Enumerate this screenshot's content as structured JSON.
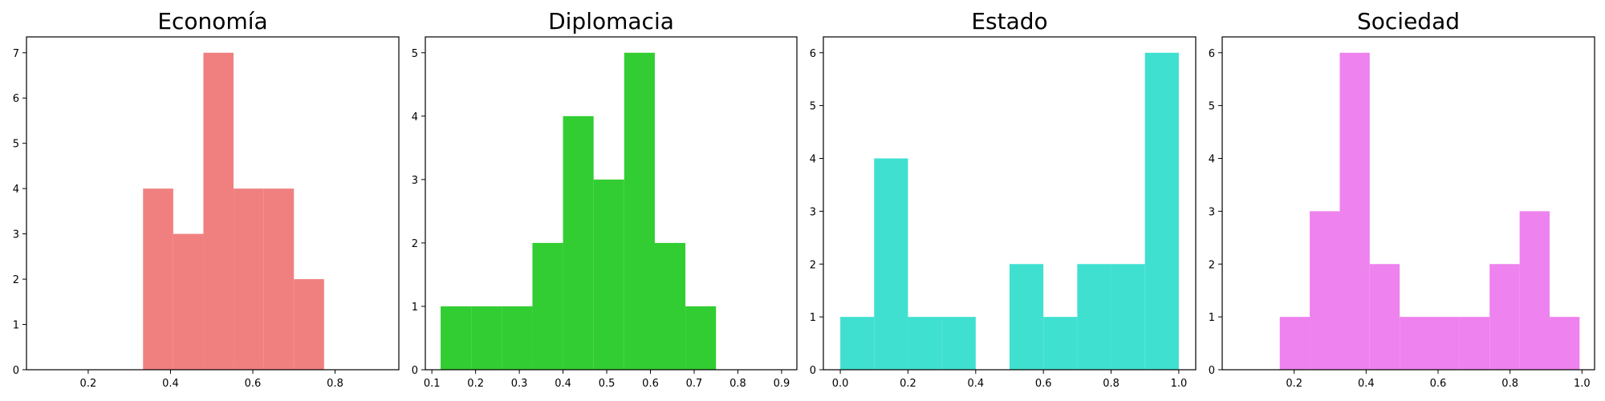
{
  "chart_data": [
    {
      "type": "histogram",
      "title": "Economía",
      "color": "#f08080",
      "xlim": [
        0.05,
        0.955
      ],
      "ylim": [
        0,
        7.35
      ],
      "xticks": [
        0.2,
        0.4,
        0.6,
        0.8
      ],
      "xtick_labels": [
        "0.2",
        "0.4",
        "0.6",
        "0.8"
      ],
      "yticks": [
        0,
        1,
        2,
        3,
        4,
        5,
        6,
        7
      ],
      "ytick_labels": [
        "0",
        "1",
        "2",
        "3",
        "4",
        "5",
        "6",
        "7"
      ],
      "bins": [
        {
          "x0": 0.3333,
          "x1": 0.4067,
          "count": 4
        },
        {
          "x0": 0.4067,
          "x1": 0.48,
          "count": 3
        },
        {
          "x0": 0.48,
          "x1": 0.5533,
          "count": 7
        },
        {
          "x0": 0.5533,
          "x1": 0.6267,
          "count": 4
        },
        {
          "x0": 0.6267,
          "x1": 0.7,
          "count": 4
        },
        {
          "x0": 0.7,
          "x1": 0.7733,
          "count": 2
        }
      ]
    },
    {
      "type": "histogram",
      "title": "Diplomacia",
      "color": "#32cd32",
      "xlim": [
        0.085,
        0.935
      ],
      "ylim": [
        0,
        5.25
      ],
      "xticks": [
        0.1,
        0.2,
        0.3,
        0.4,
        0.5,
        0.6,
        0.7,
        0.8,
        0.9
      ],
      "xtick_labels": [
        "0.1",
        "0.2",
        "0.3",
        "0.4",
        "0.5",
        "0.6",
        "0.7",
        "0.8",
        "0.9"
      ],
      "yticks": [
        0,
        1,
        2,
        3,
        4,
        5
      ],
      "ytick_labels": [
        "0",
        "1",
        "2",
        "3",
        "4",
        "5"
      ],
      "bins": [
        {
          "x0": 0.12,
          "x1": 0.19,
          "count": 1
        },
        {
          "x0": 0.19,
          "x1": 0.26,
          "count": 1
        },
        {
          "x0": 0.26,
          "x1": 0.33,
          "count": 1
        },
        {
          "x0": 0.33,
          "x1": 0.4,
          "count": 2
        },
        {
          "x0": 0.4,
          "x1": 0.47,
          "count": 4
        },
        {
          "x0": 0.47,
          "x1": 0.54,
          "count": 3
        },
        {
          "x0": 0.54,
          "x1": 0.61,
          "count": 5
        },
        {
          "x0": 0.61,
          "x1": 0.68,
          "count": 2
        },
        {
          "x0": 0.68,
          "x1": 0.75,
          "count": 1
        }
      ]
    },
    {
      "type": "histogram",
      "title": "Estado",
      "color": "#40e0d0",
      "xlim": [
        -0.05,
        1.05
      ],
      "ylim": [
        0,
        6.3
      ],
      "xticks": [
        0.0,
        0.2,
        0.4,
        0.6,
        0.8,
        1.0
      ],
      "xtick_labels": [
        "0.0",
        "0.2",
        "0.4",
        "0.6",
        "0.8",
        "1.0"
      ],
      "yticks": [
        0,
        1,
        2,
        3,
        4,
        5,
        6
      ],
      "ytick_labels": [
        "0",
        "1",
        "2",
        "3",
        "4",
        "5",
        "6"
      ],
      "bins": [
        {
          "x0": 0.0,
          "x1": 0.1,
          "count": 1
        },
        {
          "x0": 0.1,
          "x1": 0.2,
          "count": 4
        },
        {
          "x0": 0.2,
          "x1": 0.3,
          "count": 1
        },
        {
          "x0": 0.3,
          "x1": 0.4,
          "count": 1
        },
        {
          "x0": 0.4,
          "x1": 0.5,
          "count": 0
        },
        {
          "x0": 0.5,
          "x1": 0.6,
          "count": 2
        },
        {
          "x0": 0.6,
          "x1": 0.7,
          "count": 1
        },
        {
          "x0": 0.7,
          "x1": 0.8,
          "count": 2
        },
        {
          "x0": 0.8,
          "x1": 0.9,
          "count": 2
        },
        {
          "x0": 0.9,
          "x1": 1.0,
          "count": 6
        }
      ]
    },
    {
      "type": "histogram",
      "title": "Sociedad",
      "color": "#ee82ee",
      "xlim": [
        0.0,
        1.035
      ],
      "ylim": [
        0,
        6.3
      ],
      "xticks": [
        0.2,
        0.4,
        0.6,
        0.8,
        1.0
      ],
      "xtick_labels": [
        "0.2",
        "0.4",
        "0.6",
        "0.8",
        "1.0"
      ],
      "yticks": [
        0,
        1,
        2,
        3,
        4,
        5,
        6
      ],
      "ytick_labels": [
        "0",
        "1",
        "2",
        "3",
        "4",
        "5",
        "6"
      ],
      "bins": [
        {
          "x0": 0.16,
          "x1": 0.2433,
          "count": 1
        },
        {
          "x0": 0.2433,
          "x1": 0.3267,
          "count": 3
        },
        {
          "x0": 0.3267,
          "x1": 0.41,
          "count": 6
        },
        {
          "x0": 0.41,
          "x1": 0.4933,
          "count": 2
        },
        {
          "x0": 0.4933,
          "x1": 0.5767,
          "count": 1
        },
        {
          "x0": 0.5767,
          "x1": 0.66,
          "count": 1
        },
        {
          "x0": 0.66,
          "x1": 0.7433,
          "count": 1
        },
        {
          "x0": 0.7433,
          "x1": 0.8267,
          "count": 2
        },
        {
          "x0": 0.8267,
          "x1": 0.91,
          "count": 3
        },
        {
          "x0": 0.91,
          "x1": 0.9933,
          "count": 1
        }
      ]
    }
  ]
}
